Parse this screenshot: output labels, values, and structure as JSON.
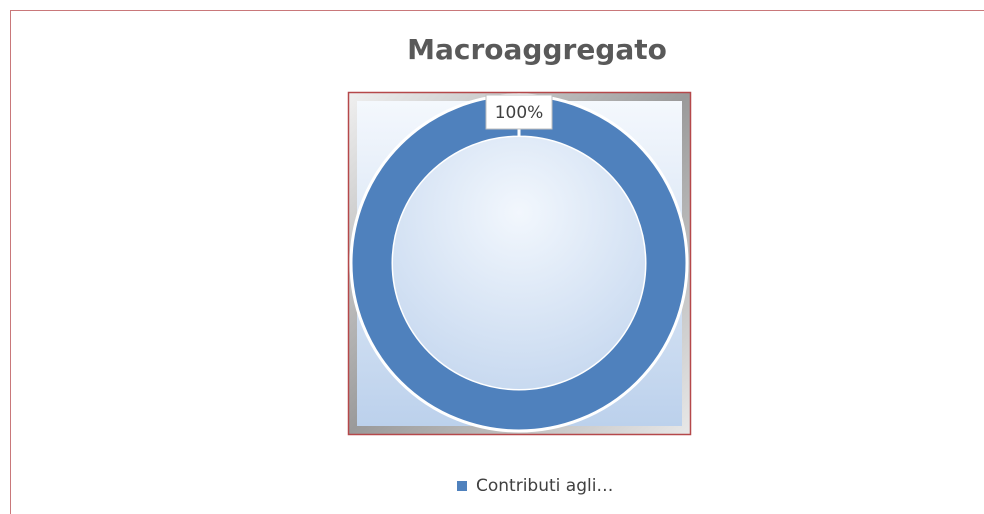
{
  "chart_data": {
    "type": "donut",
    "title": "Macroaggregato",
    "categories": [
      "Contributi agli…"
    ],
    "values": [
      100
    ],
    "value_labels": [
      "100%"
    ],
    "colors": [
      "#4f81bd"
    ],
    "legend": "bottom"
  }
}
